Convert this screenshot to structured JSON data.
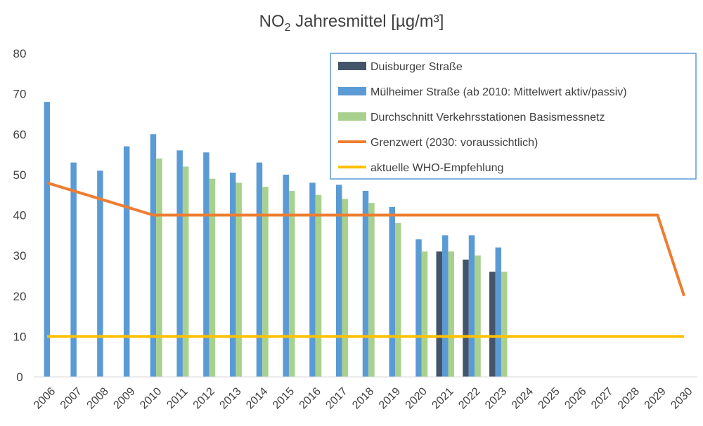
{
  "chart_data": {
    "type": "bar",
    "title": {
      "prefix": "NO",
      "subscript": "2",
      "suffix": " Jahresmittel [µg/m³]"
    },
    "xlabel": "",
    "ylabel": "",
    "ylim": [
      0,
      80
    ],
    "yticks": [
      "0",
      "10",
      "20",
      "30",
      "40",
      "50",
      "60",
      "70",
      "80"
    ],
    "grid": false,
    "legend_position": "top-right",
    "categories": [
      "2006",
      "2007",
      "2008",
      "2009",
      "2010",
      "2011",
      "2012",
      "2013",
      "2014",
      "2015",
      "2016",
      "2017",
      "2018",
      "2019",
      "2020",
      "2021",
      "2022",
      "2023",
      "2024",
      "2025",
      "2026",
      "2027",
      "2028",
      "2029",
      "2030"
    ],
    "series": [
      {
        "name": "Duisburger Straße",
        "type": "bar",
        "color": "#44546a",
        "values": [
          null,
          null,
          null,
          null,
          null,
          null,
          null,
          null,
          null,
          null,
          null,
          null,
          null,
          null,
          null,
          31,
          29,
          26,
          null,
          null,
          null,
          null,
          null,
          null,
          null
        ]
      },
      {
        "name": "Mülheimer Straße (ab 2010: Mittelwert aktiv/passiv)",
        "type": "bar",
        "color": "#5b9bd5",
        "values": [
          68,
          53,
          51,
          57,
          60,
          56,
          55.5,
          50.5,
          53,
          50,
          48,
          47.5,
          46,
          42,
          34,
          35,
          35,
          32,
          null,
          null,
          null,
          null,
          null,
          null,
          null
        ]
      },
      {
        "name": "Durchschnitt Verkehrsstationen Basismessnetz",
        "type": "bar",
        "color": "#a9d18e",
        "values": [
          null,
          null,
          null,
          null,
          54,
          52,
          49,
          48,
          47,
          46,
          45,
          44,
          43,
          38,
          31,
          31,
          30,
          26,
          null,
          null,
          null,
          null,
          null,
          null,
          null
        ]
      },
      {
        "name": "Grenzwert (2030: voraussichtlich)",
        "type": "line",
        "color": "#ed7d31",
        "values": [
          48,
          46,
          44,
          42,
          40,
          40,
          40,
          40,
          40,
          40,
          40,
          40,
          40,
          40,
          40,
          40,
          40,
          40,
          40,
          40,
          40,
          40,
          40,
          40,
          20
        ]
      },
      {
        "name": "aktuelle WHO-Empfehlung",
        "type": "line",
        "color": "#ffc000",
        "values": [
          10,
          10,
          10,
          10,
          10,
          10,
          10,
          10,
          10,
          10,
          10,
          10,
          10,
          10,
          10,
          10,
          10,
          10,
          10,
          10,
          10,
          10,
          10,
          10,
          10
        ]
      }
    ]
  }
}
